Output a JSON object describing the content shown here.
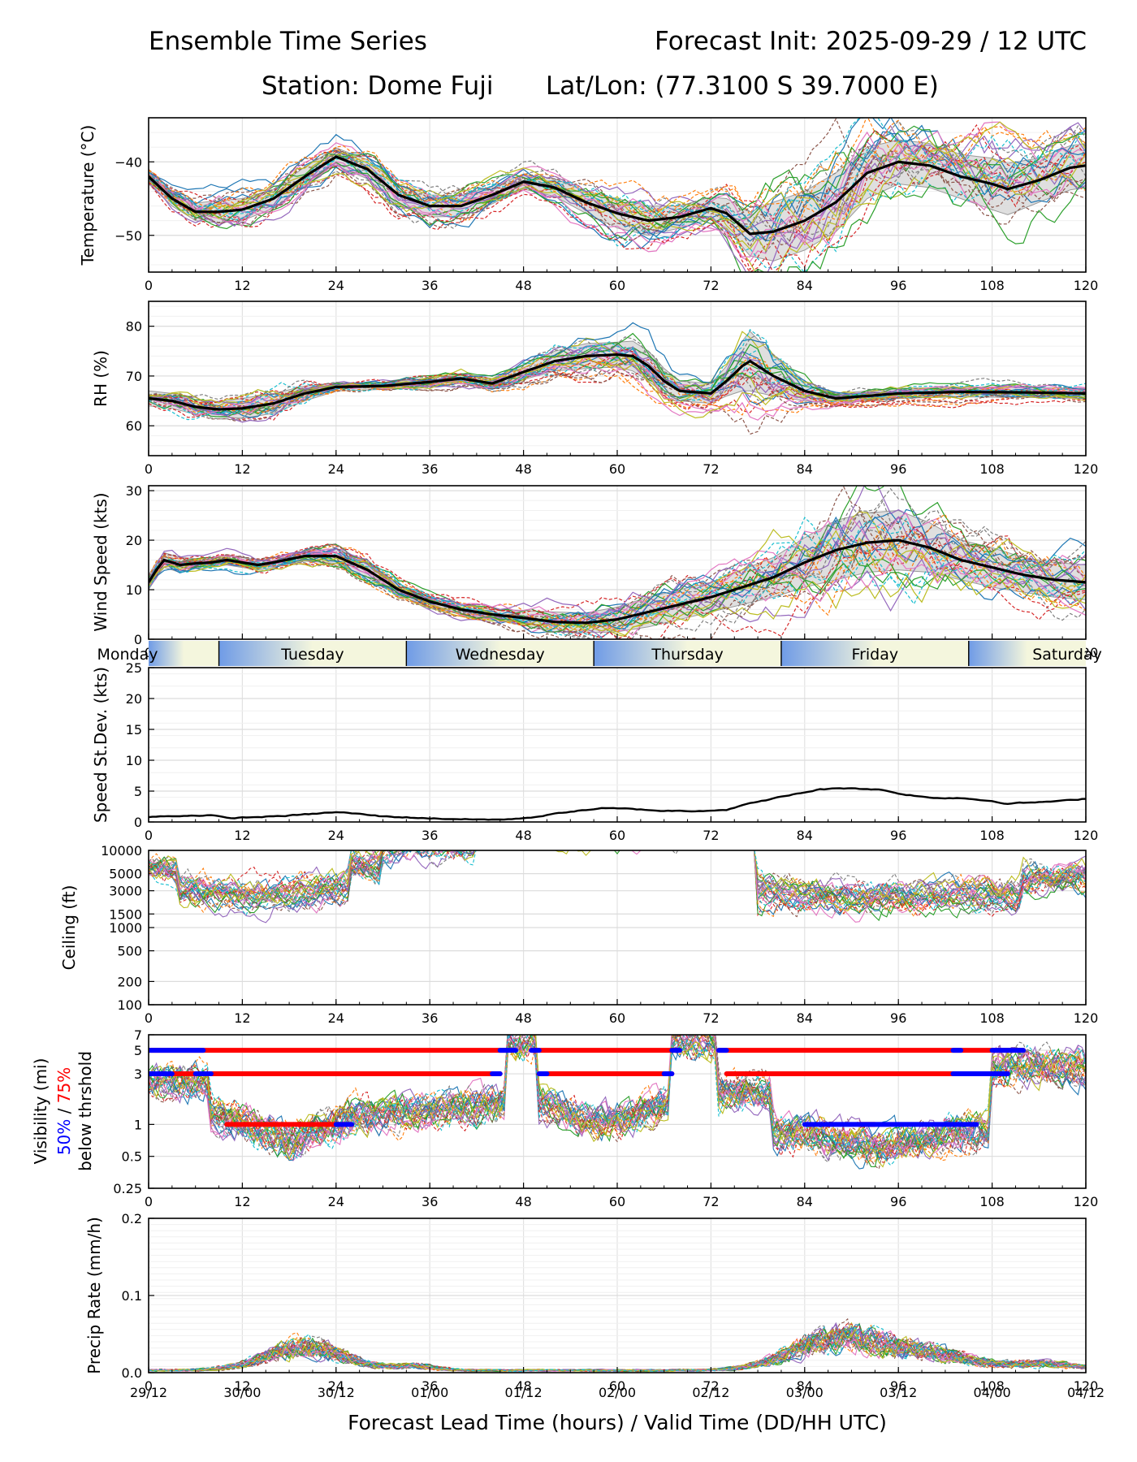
{
  "header": {
    "title_left": "Ensemble Time Series",
    "title_right": "Forecast Init: 2025-09-29 / 12 UTC",
    "station": "Station: Dome Fuji",
    "latlon": "Lat/Lon: (77.3100 S 39.7000 E)"
  },
  "x_axis": {
    "lead_ticks": [
      "0",
      "12",
      "24",
      "36",
      "48",
      "60",
      "72",
      "84",
      "96",
      "108",
      "120"
    ],
    "valid_ticks": [
      "29/12",
      "30/00",
      "30/12",
      "01/00",
      "01/12",
      "02/00",
      "02/12",
      "03/00",
      "03/12",
      "04/00",
      "04/12"
    ],
    "label": "Forecast Lead Time (hours) / Valid Time (DD/HH UTC)",
    "range": [
      0,
      120
    ]
  },
  "days": [
    {
      "name": "Monday",
      "start": -12,
      "end": 9
    },
    {
      "name": "Tuesday",
      "start": 9,
      "end": 33
    },
    {
      "name": "Wednesday",
      "start": 33,
      "end": 57
    },
    {
      "name": "Thursday",
      "start": 57,
      "end": 81
    },
    {
      "name": "Friday",
      "start": 81,
      "end": 105
    },
    {
      "name": "Saturday",
      "start": 105,
      "end": 129
    }
  ],
  "colors": {
    "mean": "#000000",
    "spread": "#d3d3d3",
    "vis50": "#0000ff",
    "vis75": "#ff0000",
    "day_gradient_blue": "#6f9be6",
    "day_gradient_light": "#f4f6dd",
    "members": [
      "#1f77b4",
      "#ff7f0e",
      "#2ca02c",
      "#d62728",
      "#9467bd",
      "#8c564b",
      "#e377c2",
      "#7f7f7f",
      "#bcbd22",
      "#17becf"
    ]
  },
  "chart_data": [
    {
      "type": "line",
      "id": "temperature",
      "ylabel": "Temperature (°C)",
      "ylim": [
        -55,
        -34
      ],
      "yticks": [
        -50,
        -40
      ],
      "ytick_labels": [
        "−50",
        "−40"
      ],
      "mean": {
        "x": [
          0,
          3,
          6,
          9,
          12,
          16,
          20,
          24,
          28,
          32,
          36,
          40,
          44,
          48,
          52,
          56,
          60,
          64,
          68,
          72,
          74,
          77,
          80,
          84,
          88,
          92,
          96,
          100,
          104,
          108,
          110,
          114,
          118,
          120
        ],
        "y": [
          -42,
          -45,
          -46.8,
          -46.8,
          -46.5,
          -45,
          -42,
          -39.3,
          -41,
          -44.5,
          -46,
          -46,
          -44.5,
          -42.7,
          -43.5,
          -45.5,
          -47,
          -48,
          -47.5,
          -46.3,
          -47,
          -49.8,
          -49.5,
          -48,
          -45.5,
          -41.5,
          -40,
          -40.5,
          -42,
          -43,
          -43.7,
          -42.5,
          -40.8,
          -40.5
        ]
      },
      "spread_halfwidth": [
        1,
        1,
        1.2,
        1.5,
        1.5,
        1.3,
        1.3,
        1.2,
        1.3,
        1.4,
        1.5,
        1.4,
        1.2,
        1,
        1.2,
        1.5,
        2,
        2,
        1.5,
        1.5,
        2,
        3,
        4,
        4,
        4,
        3.5,
        3,
        3,
        3,
        3.5,
        3.5,
        3,
        3,
        3
      ],
      "member_count": 30
    },
    {
      "type": "line",
      "id": "rh",
      "ylabel": "RH (%)",
      "ylim": [
        54,
        85
      ],
      "yticks": [
        60,
        70,
        80
      ],
      "ytick_labels": [
        "60",
        "70",
        "80"
      ],
      "mean": {
        "x": [
          0,
          3,
          6,
          9,
          12,
          16,
          20,
          24,
          30,
          36,
          40,
          44,
          48,
          52,
          56,
          60,
          62,
          64,
          66,
          68,
          72,
          74,
          76,
          77,
          80,
          84,
          88,
          96,
          104,
          112,
          120
        ],
        "y": [
          65.5,
          65,
          63.8,
          63.3,
          63.5,
          64.5,
          66.5,
          67.8,
          68,
          68.8,
          69.5,
          68.5,
          70.8,
          73,
          74,
          74.3,
          74,
          72,
          69,
          67,
          66.5,
          69,
          72,
          73,
          70,
          67,
          65.5,
          66.5,
          66.8,
          66.7,
          66.5
        ]
      },
      "spread_halfwidth": [
        1.5,
        1.5,
        1.5,
        1.5,
        2,
        2,
        1.5,
        0.8,
        0.7,
        0.8,
        1,
        1,
        1.5,
        2,
        2.5,
        2.5,
        3,
        3,
        2.5,
        2,
        2,
        3,
        5,
        6,
        4,
        2,
        1,
        1,
        1,
        1,
        1
      ],
      "member_count": 30
    },
    {
      "type": "line",
      "id": "wind",
      "ylabel": "Wind Speed (kts)",
      "ylim": [
        0,
        31
      ],
      "yticks": [
        0,
        10,
        20,
        30
      ],
      "ytick_labels": [
        "0",
        "10",
        "20",
        "30"
      ],
      "mean": {
        "x": [
          0,
          1,
          2,
          4,
          6,
          8,
          10,
          12,
          14,
          16,
          20,
          24,
          28,
          32,
          36,
          40,
          44,
          48,
          52,
          56,
          60,
          64,
          68,
          72,
          76,
          80,
          84,
          88,
          92,
          96,
          100,
          104,
          108,
          112,
          116,
          120
        ],
        "y": [
          11.5,
          14,
          16,
          15,
          15.3,
          15.5,
          16,
          15.5,
          15,
          15.5,
          16.8,
          16.8,
          14,
          10,
          7.6,
          6,
          5,
          4.3,
          3.5,
          3.3,
          4,
          5.5,
          7,
          8.5,
          10.5,
          12.5,
          15.5,
          18,
          19.5,
          20,
          18.5,
          16,
          14.5,
          13,
          12,
          11.5
        ]
      },
      "spread_halfwidth": [
        1.5,
        1.5,
        1.5,
        1.5,
        1,
        1,
        1,
        1,
        1,
        1,
        1,
        1.5,
        1.5,
        1.2,
        1,
        1,
        1,
        1.5,
        2,
        2,
        2.5,
        3,
        3,
        3,
        3.5,
        4,
        5,
        6,
        6,
        6,
        5,
        4,
        4,
        3.5,
        3.5,
        3.5
      ],
      "member_count": 30
    },
    {
      "type": "line",
      "id": "speed_stdev",
      "ylabel": "Speed St.Dev. (kts)",
      "ylim": [
        0,
        25
      ],
      "yticks": [
        0,
        5,
        10,
        15,
        20,
        25
      ],
      "ytick_labels": [
        "0",
        "5",
        "10",
        "15",
        "20",
        "25"
      ],
      "x": [
        0,
        4,
        8,
        10,
        12,
        16,
        20,
        24,
        26,
        30,
        36,
        42,
        46,
        50,
        54,
        58,
        62,
        66,
        70,
        74,
        78,
        82,
        86,
        90,
        94,
        96,
        98,
        100,
        104,
        108,
        110,
        114,
        118,
        120
      ],
      "y": [
        0.8,
        1,
        1.1,
        0.6,
        0.7,
        0.9,
        1.2,
        1.6,
        1.4,
        0.9,
        0.6,
        0.4,
        0.4,
        0.9,
        1.7,
        2.2,
        2.1,
        1.8,
        1.8,
        2,
        3.3,
        4.3,
        5.3,
        5.5,
        5.2,
        4.6,
        4.3,
        3.9,
        3.9,
        3.4,
        3,
        3.2,
        3.5,
        3.8
      ]
    },
    {
      "type": "line",
      "id": "ceiling",
      "ylabel": "Ceiling (ft)",
      "scale": "log",
      "ylim": [
        100,
        10000
      ],
      "yticks": [
        100,
        200,
        500,
        1000,
        1500,
        3000,
        5000,
        10000
      ],
      "ytick_labels": [
        "100",
        "200",
        "500",
        "1000",
        "1500",
        "3000",
        "5000",
        "10000"
      ],
      "member_count": 30
    },
    {
      "type": "line",
      "id": "visibility",
      "ylabel": "Visibility (mi)",
      "ylabel_50": "50%",
      "ylabel_sep": " / ",
      "ylabel_75": "75%",
      "ylabel_sub": "below thrshold",
      "scale": "log",
      "ylim": [
        0.25,
        7
      ],
      "yticks": [
        0.25,
        0.5,
        1,
        3,
        5,
        7
      ],
      "ytick_labels": [
        "0.25",
        "0.5",
        "1",
        "3",
        "5",
        "7"
      ],
      "threshold_bars": [
        {
          "level": 5,
          "pct": 75,
          "x0": 0,
          "x1": 46
        },
        {
          "level": 5,
          "pct": 50,
          "x0": 0,
          "x1": 7
        },
        {
          "level": 5,
          "pct": 50,
          "x0": 45,
          "x1": 47
        },
        {
          "level": 5,
          "pct": 75,
          "x0": 49,
          "x1": 68
        },
        {
          "level": 5,
          "pct": 50,
          "x0": 49,
          "x1": 50
        },
        {
          "level": 5,
          "pct": 50,
          "x0": 67,
          "x1": 68
        },
        {
          "level": 5,
          "pct": 75,
          "x0": 73,
          "x1": 112
        },
        {
          "level": 5,
          "pct": 50,
          "x0": 73,
          "x1": 74
        },
        {
          "level": 5,
          "pct": 50,
          "x0": 103,
          "x1": 104
        },
        {
          "level": 5,
          "pct": 50,
          "x0": 108,
          "x1": 112
        },
        {
          "level": 3,
          "pct": 75,
          "x0": 0,
          "x1": 45
        },
        {
          "level": 3,
          "pct": 50,
          "x0": 0,
          "x1": 3
        },
        {
          "level": 3,
          "pct": 50,
          "x0": 6,
          "x1": 8
        },
        {
          "level": 3,
          "pct": 50,
          "x0": 44,
          "x1": 45
        },
        {
          "level": 3,
          "pct": 75,
          "x0": 50,
          "x1": 67
        },
        {
          "level": 3,
          "pct": 50,
          "x0": 50,
          "x1": 51
        },
        {
          "level": 3,
          "pct": 50,
          "x0": 66,
          "x1": 67
        },
        {
          "level": 3,
          "pct": 75,
          "x0": 74,
          "x1": 110
        },
        {
          "level": 3,
          "pct": 50,
          "x0": 103,
          "x1": 110
        },
        {
          "level": 1,
          "pct": 75,
          "x0": 10,
          "x1": 26
        },
        {
          "level": 1,
          "pct": 50,
          "x0": 24,
          "x1": 26
        },
        {
          "level": 1,
          "pct": 50,
          "x0": 84,
          "x1": 106
        },
        {
          "level": 1,
          "pct": 75,
          "x0": 91,
          "x1": 93
        }
      ],
      "member_count": 30
    },
    {
      "type": "line",
      "id": "precip",
      "ylabel": "Precip Rate (mm/h)",
      "ylim": [
        0,
        0.2
      ],
      "yticks": [
        0,
        0.1,
        0.2
      ],
      "ytick_labels": [
        "0.0",
        "0.1",
        "0.2"
      ],
      "member_count": 30
    }
  ]
}
